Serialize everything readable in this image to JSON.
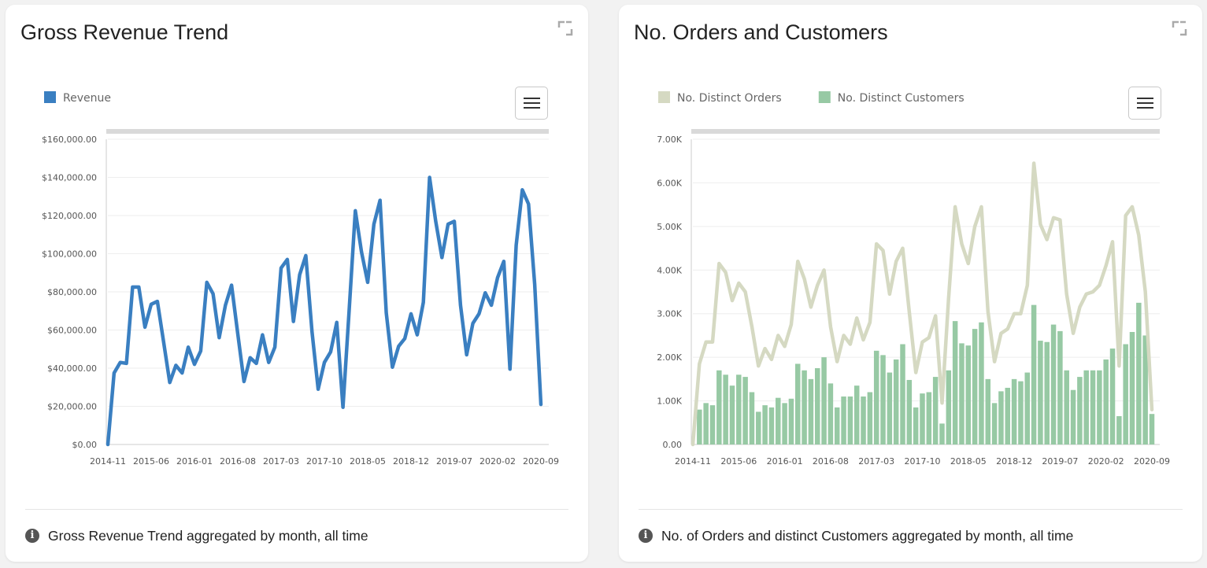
{
  "colors": {
    "revenue": "#3a7fc1",
    "orders": "#d5d9c2",
    "customers": "#97c9a4"
  },
  "cards": [
    {
      "title": "Gross Revenue Trend",
      "footer": "Gross Revenue Trend aggregated by month, all time",
      "expand_icon": "expand-icon",
      "menu_icon": "hamburger-menu-icon",
      "info_icon": "info-icon"
    },
    {
      "title": "No. Orders and Customers",
      "footer": "No. of Orders and distinct Customers aggregated by month, all time",
      "expand_icon": "expand-icon",
      "menu_icon": "hamburger-menu-icon",
      "info_icon": "info-icon"
    }
  ],
  "chart_data": [
    {
      "type": "line",
      "x_start": "2014-11",
      "x_tick_labels": [
        "2014-11",
        "2015-06",
        "2016-01",
        "2016-08",
        "2017-03",
        "2017-10",
        "2018-05",
        "2018-12",
        "2019-07",
        "2020-02",
        "2020-09"
      ],
      "y_tick_labels": [
        "$0.00",
        "$20,000.00",
        "$40,000.00",
        "$60,000.00",
        "$80,000.00",
        "$100,000.00",
        "$120,000.00",
        "$140,000.00",
        "$160,000.00"
      ],
      "ylim": [
        0,
        160000
      ],
      "grid": true,
      "legend_position": "top-left",
      "series": [
        {
          "name": "Revenue",
          "values": [
            0,
            37500,
            43000,
            42500,
            82500,
            82500,
            61500,
            73500,
            75000,
            54000,
            32500,
            41500,
            37500,
            51000,
            42000,
            49000,
            85000,
            79000,
            56000,
            73000,
            83500,
            58000,
            33000,
            45500,
            42500,
            57500,
            43000,
            51000,
            92500,
            97000,
            64500,
            89000,
            99000,
            59000,
            29000,
            43000,
            48500,
            64000,
            19500,
            70000,
            122500,
            101000,
            85000,
            115500,
            128000,
            69000,
            40500,
            51500,
            55500,
            68500,
            57500,
            74500,
            140000,
            117000,
            98000,
            115500,
            117000,
            73000,
            47000,
            63500,
            68500,
            79500,
            73000,
            87500,
            96000,
            39500,
            104500,
            133500,
            126000,
            84000,
            21000
          ]
        }
      ]
    },
    {
      "type": "bar",
      "x_start": "2014-11",
      "x_tick_labels": [
        "2014-11",
        "2015-06",
        "2016-01",
        "2016-08",
        "2017-03",
        "2017-10",
        "2018-05",
        "2018-12",
        "2019-07",
        "2020-02",
        "2020-09"
      ],
      "y_tick_labels": [
        "0.00",
        "1.00K",
        "2.00K",
        "3.00K",
        "4.00K",
        "5.00K",
        "6.00K",
        "7.00K"
      ],
      "ylim": [
        0,
        7000
      ],
      "grid": true,
      "legend_position": "top-left",
      "series": [
        {
          "name": "No. Distinct Orders",
          "type": "line",
          "values": [
            0,
            1850,
            2350,
            2350,
            4150,
            3950,
            3300,
            3700,
            3500,
            2700,
            1800,
            2200,
            1950,
            2500,
            2250,
            2750,
            4200,
            3800,
            3150,
            3650,
            4000,
            2700,
            1900,
            2500,
            2300,
            2900,
            2400,
            2800,
            4600,
            4450,
            3450,
            4200,
            4500,
            3050,
            1650,
            2350,
            2450,
            2950,
            950,
            3350,
            5450,
            4600,
            4150,
            5000,
            5450,
            3050,
            1900,
            2550,
            2650,
            3000,
            3000,
            3650,
            6450,
            5050,
            4700,
            5200,
            5150,
            3450,
            2550,
            3150,
            3450,
            3500,
            3650,
            4100,
            4650,
            1800,
            5250,
            5450,
            4800,
            3500,
            800
          ]
        },
        {
          "name": "No. Distinct Customers",
          "type": "bar",
          "values": [
            0,
            800,
            950,
            900,
            1700,
            1600,
            1350,
            1600,
            1550,
            1200,
            750,
            900,
            850,
            1070,
            950,
            1050,
            1850,
            1700,
            1500,
            1750,
            2000,
            1400,
            850,
            1100,
            1100,
            1350,
            1100,
            1200,
            2150,
            2050,
            1650,
            1950,
            2300,
            1480,
            850,
            1170,
            1200,
            1550,
            480,
            1700,
            2830,
            2320,
            2270,
            2650,
            2800,
            1500,
            950,
            1220,
            1300,
            1500,
            1450,
            1650,
            3200,
            2380,
            2350,
            2750,
            2600,
            1700,
            1250,
            1550,
            1700,
            1700,
            1700,
            1950,
            2200,
            650,
            2300,
            2580,
            3250,
            2500,
            700
          ]
        }
      ]
    }
  ]
}
